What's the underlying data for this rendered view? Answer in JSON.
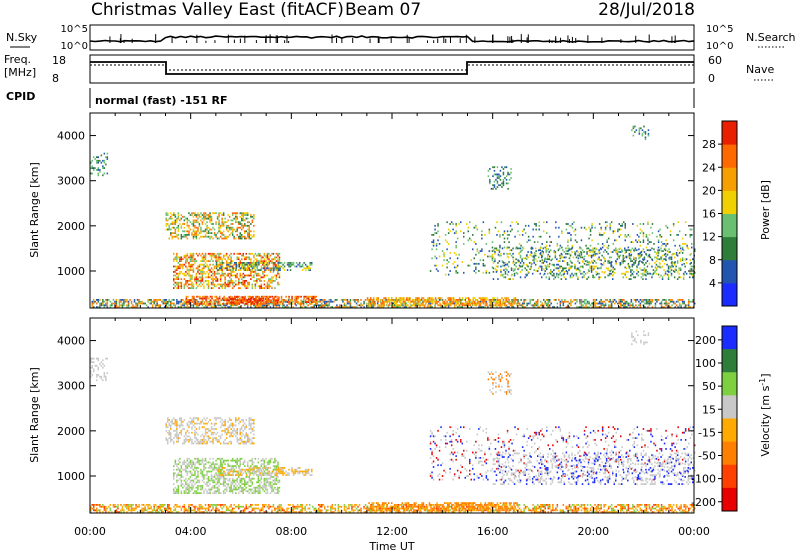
{
  "header": {
    "title": "Christmas Valley East (fitACF)",
    "beam": "Beam 07",
    "date": "28/Jul/2018"
  },
  "top_panels": {
    "nsky_label": "N.Sky",
    "nsearch_label": "N.Search",
    "nsky_ticks": [
      "10^5",
      "10^0"
    ],
    "nsearch_ticks": [
      "10^5",
      "10^0"
    ],
    "freq_label_1": "Freq.",
    "freq_label_2": "[MHz]",
    "freq_ticks": [
      "18",
      "8"
    ],
    "nave_label": "Nave",
    "nave_ticks": [
      "60",
      "0"
    ],
    "cpid_label": "CPID",
    "cpid_text": "normal (fast) -151 RF"
  },
  "chart_data": [
    {
      "type": "heatmap",
      "name": "power",
      "ylabel": "Slant Range [km]",
      "xlabel": "Time UT",
      "x_ticks": [
        "00:00",
        "04:00",
        "08:00",
        "12:00",
        "16:00",
        "20:00",
        "00:00"
      ],
      "xlim_hours": [
        0,
        24
      ],
      "y_ticks": [
        1000,
        2000,
        3000,
        4000
      ],
      "ylim": [
        180,
        4500
      ],
      "colorbar": {
        "label": "Power [dB]",
        "ticks": [
          4,
          8,
          12,
          16,
          20,
          24,
          28
        ],
        "range": [
          0,
          30
        ],
        "colors": [
          "#1a2cff",
          "#2255b0",
          "#2e7d3a",
          "#68c070",
          "#f0d000",
          "#f5a000",
          "#ff6a00",
          "#e82000"
        ]
      },
      "scatter_regions": [
        {
          "t0": 0.0,
          "t1": 24.0,
          "r0": 180,
          "r1": 380,
          "density": 0.55,
          "levels": [
            1,
            2,
            3,
            5,
            6
          ]
        },
        {
          "t0": 3.8,
          "t1": 9.0,
          "r0": 250,
          "r1": 450,
          "density": 0.6,
          "levels": [
            5,
            6,
            7
          ]
        },
        {
          "t0": 11.0,
          "t1": 17.0,
          "r0": 220,
          "r1": 420,
          "density": 0.55,
          "levels": [
            4,
            5,
            6
          ]
        },
        {
          "t0": 3.0,
          "t1": 6.5,
          "r0": 1700,
          "r1": 2300,
          "density": 0.45,
          "levels": [
            2,
            3,
            4,
            5,
            6
          ]
        },
        {
          "t0": 3.3,
          "t1": 7.5,
          "r0": 600,
          "r1": 1400,
          "density": 0.5,
          "levels": [
            3,
            4,
            5,
            6,
            7
          ]
        },
        {
          "t0": 5.0,
          "t1": 8.8,
          "r0": 1000,
          "r1": 1200,
          "density": 0.45,
          "levels": [
            1,
            2,
            3,
            4
          ]
        },
        {
          "t0": 5.5,
          "t1": 7.5,
          "r0": 280,
          "r1": 420,
          "density": 0.6,
          "levels": [
            6,
            7
          ]
        },
        {
          "t0": 13.5,
          "t1": 24.0,
          "r0": 900,
          "r1": 2100,
          "density": 0.12,
          "levels": [
            1,
            2,
            3,
            4
          ]
        },
        {
          "t0": 16.0,
          "t1": 24.0,
          "r0": 800,
          "r1": 1500,
          "density": 0.25,
          "levels": [
            1,
            2,
            3,
            4
          ]
        },
        {
          "t0": 0.0,
          "t1": 0.7,
          "r0": 3100,
          "r1": 3600,
          "density": 0.3,
          "levels": [
            1,
            2,
            3
          ]
        },
        {
          "t0": 15.8,
          "t1": 16.7,
          "r0": 2800,
          "r1": 3300,
          "density": 0.25,
          "levels": [
            1,
            2,
            3
          ]
        },
        {
          "t0": 21.5,
          "t1": 22.2,
          "r0": 3900,
          "r1": 4200,
          "density": 0.3,
          "levels": [
            1,
            2,
            3
          ]
        }
      ]
    },
    {
      "type": "heatmap",
      "name": "velocity",
      "ylabel": "Slant Range [km]",
      "xlabel": "Time UT",
      "x_ticks": [
        "00:00",
        "04:00",
        "08:00",
        "12:00",
        "16:00",
        "20:00",
        "00:00"
      ],
      "xlim_hours": [
        0,
        24
      ],
      "y_ticks": [
        1000,
        2000,
        3000,
        4000
      ],
      "ylim": [
        180,
        4500
      ],
      "colorbar": {
        "label": "Velocity [m s^-1]",
        "ticks": [
          200,
          100,
          50,
          15,
          -15,
          -50,
          -100,
          -200
        ],
        "colors": [
          "#1a2cff",
          "#2e7d3a",
          "#7ed040",
          "#c8c8c8",
          "#ffaa00",
          "#ff8000",
          "#ff4000",
          "#e80000"
        ]
      },
      "scatter_regions": [
        {
          "t0": 0.0,
          "t1": 24.0,
          "r0": 180,
          "r1": 380,
          "density": 0.55,
          "levels": [
            4,
            4,
            5,
            6,
            2
          ]
        },
        {
          "t0": 11.0,
          "t1": 17.0,
          "r0": 220,
          "r1": 420,
          "density": 0.55,
          "levels": [
            4,
            5,
            5
          ]
        },
        {
          "t0": 3.0,
          "t1": 6.5,
          "r0": 1700,
          "r1": 2300,
          "density": 0.45,
          "levels": [
            3,
            3,
            3,
            4
          ]
        },
        {
          "t0": 3.3,
          "t1": 7.5,
          "r0": 600,
          "r1": 1400,
          "density": 0.5,
          "levels": [
            2,
            2,
            3,
            3
          ]
        },
        {
          "t0": 5.0,
          "t1": 8.8,
          "r0": 1000,
          "r1": 1200,
          "density": 0.45,
          "levels": [
            3,
            4
          ]
        },
        {
          "t0": 13.5,
          "t1": 24.0,
          "r0": 900,
          "r1": 2100,
          "density": 0.12,
          "levels": [
            3,
            3,
            0,
            7
          ]
        },
        {
          "t0": 16.0,
          "t1": 24.0,
          "r0": 800,
          "r1": 1500,
          "density": 0.25,
          "levels": [
            3,
            3,
            3,
            0
          ]
        },
        {
          "t0": 0.0,
          "t1": 0.7,
          "r0": 3100,
          "r1": 3600,
          "density": 0.3,
          "levels": [
            3
          ]
        },
        {
          "t0": 15.8,
          "t1": 16.7,
          "r0": 2800,
          "r1": 3300,
          "density": 0.25,
          "levels": [
            3,
            5
          ]
        },
        {
          "t0": 21.5,
          "t1": 22.2,
          "r0": 3900,
          "r1": 4200,
          "density": 0.3,
          "levels": [
            3
          ]
        }
      ]
    }
  ]
}
